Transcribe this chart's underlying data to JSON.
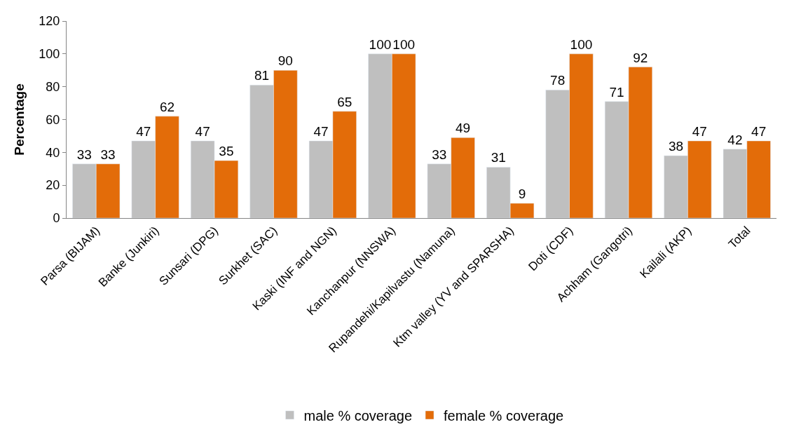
{
  "chart_data": {
    "type": "bar",
    "ylabel": "Percentage",
    "categories": [
      "Parsa (BIJAM)",
      "Banke (Junkiri)",
      "Sunsari (DPG)",
      "Surkhet (SAC)",
      "Kaski (INF and NGN)",
      "Kanchanpur (NNSWA)",
      "Rupandehi/Kapilvastu (Namuna)",
      "Ktm valley (YV and SPARSHA)",
      "Doti (CDF)",
      "Achham (Gangotri)",
      "Kailali (AKP)",
      "Total"
    ],
    "series": [
      {
        "name": "male % coverage",
        "color": "#bfbfbf",
        "values": [
          33,
          47,
          47,
          81,
          47,
          100,
          33,
          31,
          78,
          71,
          38,
          42
        ]
      },
      {
        "name": "female % coverage",
        "color": "#e36c09",
        "values": [
          33,
          62,
          35,
          90,
          65,
          100,
          49,
          9,
          100,
          92,
          47,
          47
        ]
      }
    ],
    "ylim": [
      0,
      120
    ],
    "yticks": [
      0,
      20,
      40,
      60,
      80,
      100,
      120
    ],
    "legend": "bottom",
    "data_labels": true
  }
}
